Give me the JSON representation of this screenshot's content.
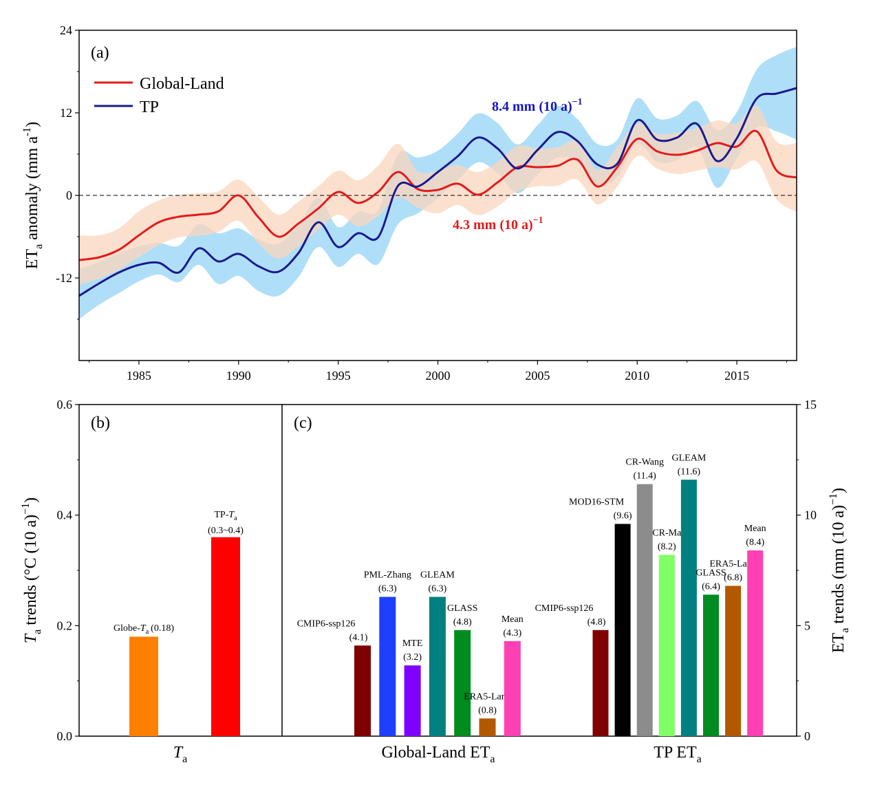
{
  "panel_a": {
    "label": "(a)",
    "legend": [
      {
        "name": "Global-Land",
        "color": "#e31a1c"
      },
      {
        "name": "TP",
        "color": "#1a1a8c"
      }
    ],
    "ylabel_main": "ET",
    "ylabel_sub": "a",
    "ylabel_rest": " anomaly (mm a",
    "ylabel_sup": "-1",
    "ylabel_end": ")",
    "annot_tp": {
      "value": "8.4",
      "unit": " mm (10 a)",
      "sup": "−1",
      "color": "#1515c0"
    },
    "annot_gl": {
      "value": "4.3",
      "unit": " mm (10 a)",
      "sup": "−1",
      "color": "#e31a1c"
    }
  },
  "panel_b": {
    "label": "(b)",
    "ylabel_T": "T",
    "ylabel_sub": "a",
    "ylabel_rest": " trends (°C (10 a)",
    "ylabel_sup": "−1",
    "ylabel_end": ")",
    "xlabel_T": "T",
    "xlabel_sub": "a",
    "bars": [
      {
        "name": "Globe-",
        "name_T": "T",
        "name_sub": "a",
        "value_label": "(0.18)",
        "value": 0.18,
        "color": "#ff8000"
      },
      {
        "name": "TP-",
        "name_T": "T",
        "name_sub": "a",
        "value_label": "(0.3~0.4)",
        "value": 0.36,
        "color": "#ff0000"
      }
    ]
  },
  "panel_c": {
    "label": "(c)",
    "ylabel_main": "ET",
    "ylabel_sub": "a",
    "ylabel_rest": " trends (mm (10 a)",
    "ylabel_sup": "−1",
    "ylabel_end": ")",
    "groups": [
      {
        "label_main": "Global-Land ET",
        "label_sub": "a"
      },
      {
        "label_main": "TP ET",
        "label_sub": "a"
      }
    ]
  },
  "chart_data": [
    {
      "type": "line",
      "title": "(a)",
      "xlabel": "",
      "ylabel": "ETa anomaly (mm a-1)",
      "xlim": [
        1982,
        2018
      ],
      "ylim": [
        -24,
        24
      ],
      "xticks": [
        "1985",
        "1990",
        "1995",
        "2000",
        "2005",
        "2010",
        "2015"
      ],
      "yticks": [
        "-12",
        "0",
        "12",
        "24"
      ],
      "reference_line": 0,
      "x": [
        1982,
        1983,
        1984,
        1985,
        1986,
        1987,
        1988,
        1989,
        1990,
        1991,
        1992,
        1993,
        1994,
        1995,
        1996,
        1997,
        1998,
        1999,
        2000,
        2001,
        2002,
        2003,
        2004,
        2005,
        2006,
        2007,
        2008,
        2009,
        2010,
        2011,
        2012,
        2013,
        2014,
        2015,
        2016,
        2017,
        2018
      ],
      "series": [
        {
          "name": "Global-Land",
          "color": "#e31a1c",
          "band_color": "#fbd5bd",
          "values": [
            -9.4,
            -9.0,
            -7.9,
            -5.8,
            -3.9,
            -3.1,
            -2.8,
            -2.3,
            0.0,
            -3.2,
            -6.0,
            -4.1,
            -1.9,
            0.5,
            -1.1,
            0.5,
            3.4,
            0.9,
            0.8,
            1.7,
            0.1,
            1.9,
            4.1,
            4.1,
            4.3,
            5.2,
            1.3,
            4.1,
            8.2,
            6.4,
            5.9,
            6.5,
            7.6,
            7.1,
            9.3,
            3.6,
            2.6
          ],
          "lower": [
            -13.0,
            -12.1,
            -10.8,
            -9.0,
            -7.2,
            -6.1,
            -5.9,
            -5.3,
            -3.7,
            -7.0,
            -9.2,
            -7.4,
            -5.0,
            -2.8,
            -4.5,
            -3.0,
            -0.3,
            -1.8,
            -2.6,
            -1.4,
            -2.9,
            -1.6,
            0.6,
            1.3,
            1.4,
            2.3,
            -1.3,
            1.3,
            5.7,
            3.9,
            3.1,
            3.6,
            4.1,
            3.8,
            4.9,
            -0.6,
            -2.4
          ],
          "upper": [
            -5.8,
            -5.8,
            -4.8,
            -2.3,
            -0.7,
            0.1,
            0.3,
            0.6,
            2.3,
            -0.2,
            -2.8,
            -0.9,
            1.3,
            3.6,
            2.2,
            4.3,
            7.5,
            3.5,
            3.6,
            4.4,
            3.4,
            4.9,
            7.2,
            6.8,
            7.0,
            7.9,
            3.7,
            7.0,
            10.4,
            9.0,
            9.1,
            9.8,
            10.9,
            10.5,
            13.0,
            7.8,
            7.6
          ]
        },
        {
          "name": "TP",
          "color": "#1a1a8c",
          "band_color": "#a6dbf7",
          "values": [
            -14.6,
            -12.8,
            -11.2,
            -10.1,
            -9.8,
            -11.2,
            -7.7,
            -9.6,
            -8.5,
            -10.3,
            -11.1,
            -8.4,
            -3.9,
            -7.5,
            -5.5,
            -6.1,
            1.4,
            1.3,
            3.4,
            5.7,
            8.4,
            6.8,
            3.9,
            6.6,
            9.2,
            7.9,
            4.5,
            4.6,
            10.9,
            8.1,
            8.4,
            10.4,
            5.0,
            8.3,
            14.1,
            14.8,
            15.6
          ],
          "lower": [
            -18.0,
            -15.9,
            -14.2,
            -12.5,
            -11.5,
            -12.6,
            -10.1,
            -12.9,
            -11.7,
            -13.9,
            -14.6,
            -11.9,
            -7.5,
            -10.4,
            -8.5,
            -10.0,
            -4.2,
            -2.6,
            -0.4,
            2.2,
            4.8,
            3.2,
            0.3,
            3.0,
            5.5,
            4.8,
            1.5,
            2.7,
            7.5,
            4.9,
            5.1,
            7.0,
            1.1,
            5.4,
            9.8,
            9.3,
            8.1
          ],
          "upper": [
            -10.7,
            -9.7,
            -8.4,
            -7.4,
            -6.9,
            -7.3,
            -4.2,
            -5.5,
            -4.8,
            -6.4,
            -7.0,
            -4.4,
            -0.3,
            -4.6,
            -2.4,
            -2.1,
            6.0,
            5.5,
            6.5,
            9.0,
            11.9,
            10.5,
            7.4,
            10.2,
            13.0,
            11.1,
            7.5,
            8.1,
            14.1,
            11.2,
            11.6,
            13.7,
            9.5,
            12.1,
            18.3,
            20.4,
            21.6
          ]
        }
      ],
      "annotations": [
        "8.4 mm(10 a)−1",
        "4.3 mm(10 a)−1"
      ]
    },
    {
      "type": "bar",
      "title": "(b)",
      "xlabel": "Ta",
      "ylabel": "Ta trends (°C (10 a)−1)",
      "ylim": [
        0,
        0.6
      ],
      "yticks": [
        "0.0",
        "0.2",
        "0.4",
        "0.6"
      ],
      "categories": [
        "Globe-Ta",
        "TP-Ta"
      ],
      "values": [
        0.18,
        0.36
      ],
      "value_labels": [
        "(0.18)",
        "(0.3~0.4)"
      ]
    },
    {
      "type": "bar",
      "title": "(c)",
      "ylabel": "ETa trends (mm (10 a)−1)",
      "ylim": [
        0,
        15
      ],
      "yticks": [
        "0",
        "5",
        "10",
        "15"
      ],
      "groups": [
        {
          "name": "Global-Land ETa",
          "categories": [
            "CMIP6-ssp126",
            "PML-Zhang",
            "MTE",
            "GLEAM",
            "GLASS",
            "ERA5-Land",
            "Mean"
          ],
          "values": [
            4.1,
            6.3,
            3.2,
            6.3,
            4.8,
            0.8,
            4.3
          ],
          "value_labels": [
            "(4.1)",
            "(6.3)",
            "(3.2)",
            "(6.3)",
            "(4.8)",
            "(0.8)",
            "(4.3)"
          ],
          "colors": [
            "#7f0000",
            "#1f3fff",
            "#8000ff",
            "#008080",
            "#008c1f",
            "#b25900",
            "#ff40b4"
          ]
        },
        {
          "name": "TP ETa",
          "categories": [
            "CMIP6-ssp126",
            "MOD16-STM",
            "CR-Wang",
            "CR-Ma",
            "GLEAM",
            "GLASS",
            "ERA5-Land",
            "Mean"
          ],
          "values": [
            4.8,
            9.6,
            11.4,
            8.2,
            11.6,
            6.4,
            6.8,
            8.4
          ],
          "value_labels": [
            "(4.8)",
            "(9.6)",
            "(11.4)",
            "(8.2)",
            "(11.6)",
            "(6.4)",
            "(6.8)",
            "(8.4)"
          ],
          "colors": [
            "#7f0000",
            "#000000",
            "#8c8c8c",
            "#80ff66",
            "#008080",
            "#008c1f",
            "#b25900",
            "#ff40b4"
          ]
        }
      ]
    }
  ]
}
